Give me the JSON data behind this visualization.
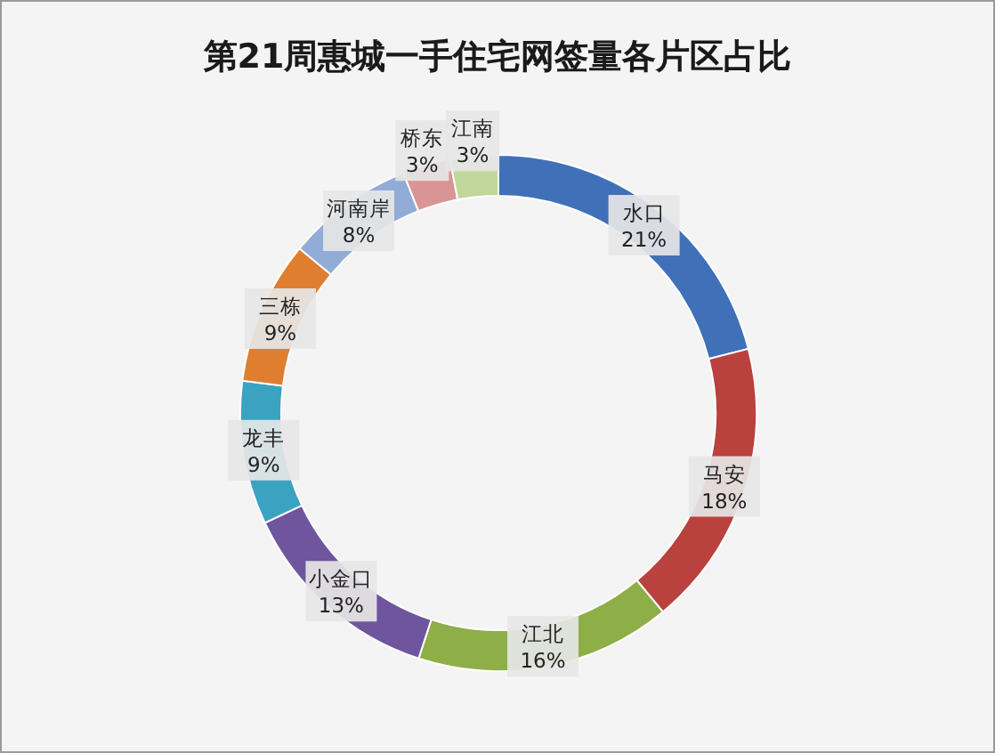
{
  "chart_data": {
    "type": "donut",
    "title": "第21周惠城一手住宅网签量各片区占比",
    "categories": [
      "水口",
      "马安",
      "江北",
      "小金口",
      "龙丰",
      "三栋",
      "河南岸",
      "桥东",
      "江南"
    ],
    "values": [
      21,
      18,
      16,
      13,
      9,
      9,
      8,
      3,
      3
    ],
    "value_labels": [
      "21%",
      "18%",
      "16%",
      "13%",
      "9%",
      "9%",
      "8%",
      "3%",
      "3%"
    ],
    "colors": [
      "#4070b8",
      "#b9413e",
      "#8eae48",
      "#6e559e",
      "#3ba2c1",
      "#e07e30",
      "#92acd8",
      "#d99593",
      "#c1d69a"
    ]
  }
}
